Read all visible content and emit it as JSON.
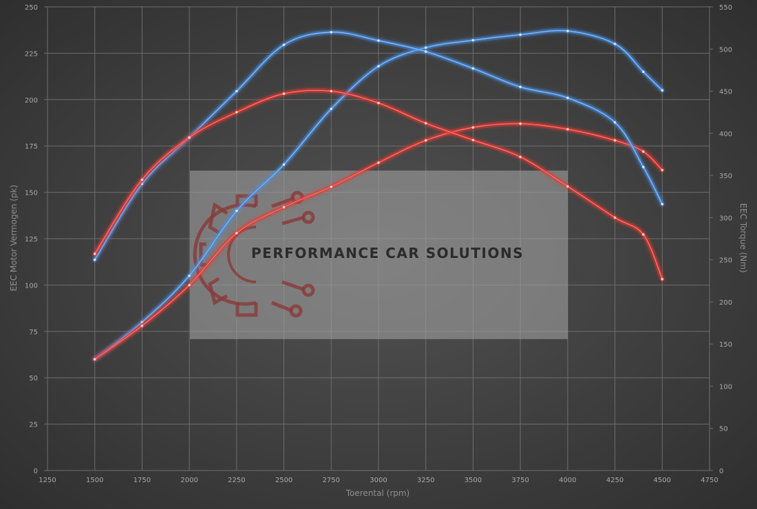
{
  "chart_data": {
    "type": "line",
    "title": "",
    "xlabel": "Toerental (rpm)",
    "ylabel_left": "EEC Motor Vermogen (pk)",
    "ylabel_right": "EEC Torque (Nm)",
    "xlim": [
      1250,
      4750
    ],
    "ylim_left": [
      0,
      250
    ],
    "ylim_right": [
      0,
      550
    ],
    "x_ticks": [
      1250,
      1500,
      1750,
      2000,
      2250,
      2500,
      2750,
      3000,
      3250,
      3500,
      3750,
      4000,
      4250,
      4500,
      4750
    ],
    "y_ticks_left": [
      0,
      25,
      50,
      75,
      100,
      125,
      150,
      175,
      200,
      225,
      250
    ],
    "y_ticks_right": [
      0,
      50,
      100,
      150,
      200,
      250,
      300,
      350,
      400,
      450,
      500,
      550
    ],
    "grid": true,
    "legend": "none",
    "series": [
      {
        "axis": "left",
        "color": "#4a90e2",
        "x": [
          1500,
          1750,
          2000,
          2250,
          2500,
          2750,
          3000,
          3250,
          3500,
          3750,
          4000,
          4250,
          4400,
          4500
        ],
        "values": [
          60,
          80,
          105,
          140,
          165,
          195,
          218,
          228,
          232,
          235,
          237,
          230,
          215,
          205
        ]
      },
      {
        "axis": "left",
        "color": "#e53935",
        "x": [
          1500,
          1750,
          2000,
          2250,
          2500,
          2750,
          3000,
          3250,
          3500,
          3750,
          4000,
          4250,
          4400,
          4500
        ],
        "values": [
          60,
          78,
          100,
          128,
          142,
          153,
          166,
          178,
          185,
          187,
          184,
          178,
          172,
          162
        ]
      },
      {
        "axis": "right",
        "color": "#4a90e2",
        "x": [
          1500,
          1750,
          2000,
          2250,
          2500,
          2750,
          3000,
          3250,
          3500,
          3750,
          4000,
          4250,
          4400,
          4500
        ],
        "values": [
          250,
          340,
          395,
          450,
          505,
          520,
          510,
          497,
          477,
          455,
          442,
          413,
          360,
          316
        ]
      },
      {
        "axis": "right",
        "color": "#e53935",
        "x": [
          1500,
          1750,
          2000,
          2250,
          2500,
          2750,
          3000,
          3250,
          3500,
          3750,
          4000,
          4250,
          4400,
          4500
        ],
        "values": [
          257,
          345,
          395,
          425,
          447,
          450,
          436,
          412,
          392,
          372,
          337,
          300,
          280,
          227
        ]
      }
    ]
  },
  "watermark": {
    "text": "PERFORMANCE CAR SOLUTIONS"
  }
}
